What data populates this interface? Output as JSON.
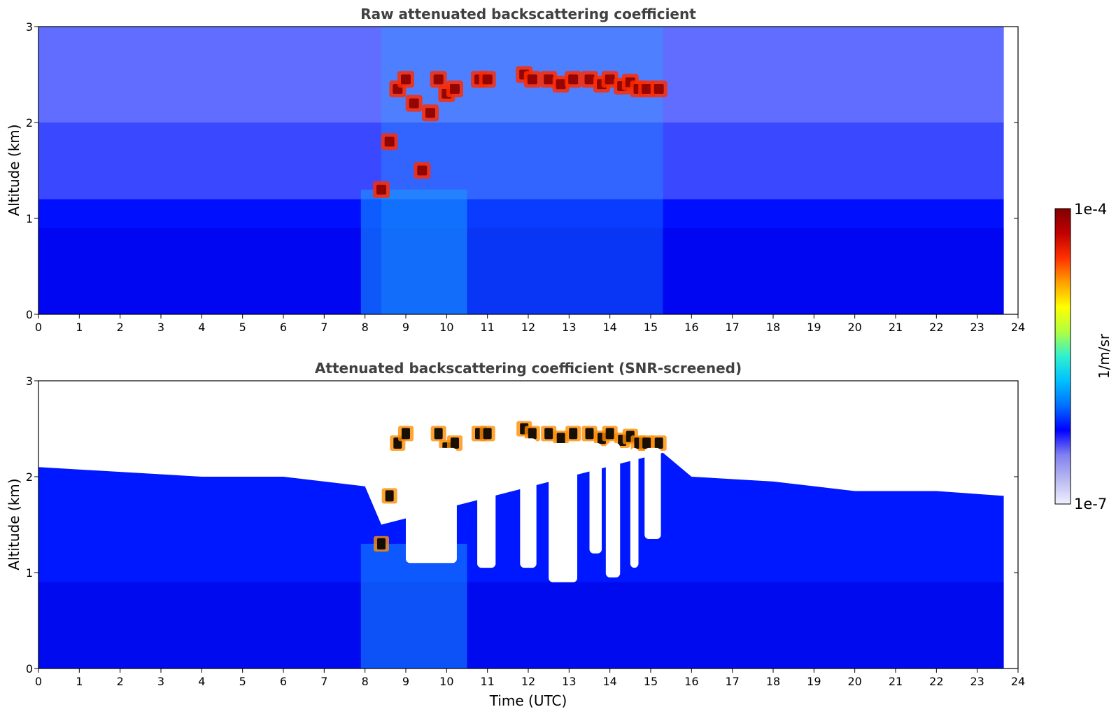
{
  "chart_data": [
    {
      "type": "heatmap",
      "title": "Raw attenuated backscattering coefficient",
      "xlabel": "",
      "ylabel": "Altitude (km)",
      "xlim": [
        0,
        24
      ],
      "ylim": [
        0,
        3
      ],
      "x_ticks": [
        "0",
        "1",
        "2",
        "3",
        "4",
        "5",
        "6",
        "7",
        "8",
        "9",
        "10",
        "11",
        "12",
        "13",
        "14",
        "15",
        "16",
        "17",
        "18",
        "19",
        "20",
        "21",
        "22",
        "23",
        "24"
      ],
      "y_ticks": [
        "0",
        "1",
        "2",
        "3"
      ],
      "data_extent_x": [
        0,
        23.65
      ],
      "cloud_layer": {
        "x": [
          8.4,
          8.6,
          8.8,
          9.0,
          9.2,
          9.4,
          9.6,
          9.8,
          10.0,
          10.2,
          10.8,
          11.0,
          11.9,
          12.1,
          12.5,
          12.8,
          13.1,
          13.5,
          13.8,
          14.0,
          14.3,
          14.5,
          14.7,
          14.9,
          15.2
        ],
        "altitude_km": [
          1.3,
          1.8,
          2.35,
          2.45,
          2.2,
          1.5,
          2.1,
          2.45,
          2.3,
          2.35,
          2.45,
          2.45,
          2.5,
          2.45,
          2.45,
          2.4,
          2.45,
          2.45,
          2.4,
          2.45,
          2.38,
          2.42,
          2.35,
          2.35,
          2.35
        ]
      }
    },
    {
      "type": "heatmap",
      "title": "Attenuated backscattering coefficient (SNR-screened)",
      "xlabel": "Time (UTC)",
      "ylabel": "Altitude (km)",
      "xlim": [
        0,
        24
      ],
      "ylim": [
        0,
        3
      ],
      "x_ticks": [
        "0",
        "1",
        "2",
        "3",
        "4",
        "5",
        "6",
        "7",
        "8",
        "9",
        "10",
        "11",
        "12",
        "13",
        "14",
        "15",
        "16",
        "17",
        "18",
        "19",
        "20",
        "21",
        "22",
        "23",
        "24"
      ],
      "y_ticks": [
        "0",
        "1",
        "2",
        "3"
      ],
      "data_extent_x": [
        0,
        23.65
      ],
      "screened_top_km": {
        "x": [
          0,
          2,
          4,
          6,
          7,
          8,
          8.4,
          15.3,
          16,
          18,
          20,
          22,
          23.65
        ],
        "altitude_km": [
          2.1,
          2.05,
          2.0,
          2.0,
          1.95,
          1.9,
          1.5,
          2.25,
          2.0,
          1.95,
          1.85,
          1.85,
          1.8
        ]
      },
      "screened_gaps_km": [
        {
          "x": [
            9.0,
            10.25
          ],
          "bottom": 1.1,
          "top": 2.3
        },
        {
          "x": [
            10.75,
            11.2
          ],
          "bottom": 1.05,
          "top": 2.35
        },
        {
          "x": [
            11.8,
            12.2
          ],
          "bottom": 1.05,
          "top": 2.4
        },
        {
          "x": [
            12.5,
            13.2
          ],
          "bottom": 0.9,
          "top": 2.35
        },
        {
          "x": [
            13.5,
            13.8
          ],
          "bottom": 1.2,
          "top": 2.35
        },
        {
          "x": [
            13.9,
            14.25
          ],
          "bottom": 0.95,
          "top": 2.35
        },
        {
          "x": [
            14.5,
            14.7
          ],
          "bottom": 1.05,
          "top": 2.3
        },
        {
          "x": [
            14.85,
            15.25
          ],
          "bottom": 1.35,
          "top": 2.3
        }
      ]
    }
  ],
  "colorbar": {
    "label": "1/m/sr",
    "min_label": "1e-7",
    "max_label": "1e-4",
    "scale": "log",
    "colors": [
      "#f0f0ff",
      "#b8b8f0",
      "#8080f0",
      "#0000ff",
      "#0070ff",
      "#00c0ff",
      "#30f0d0",
      "#b0ff40",
      "#ffff00",
      "#ffa000",
      "#ff3000",
      "#c00000",
      "#800000"
    ]
  }
}
